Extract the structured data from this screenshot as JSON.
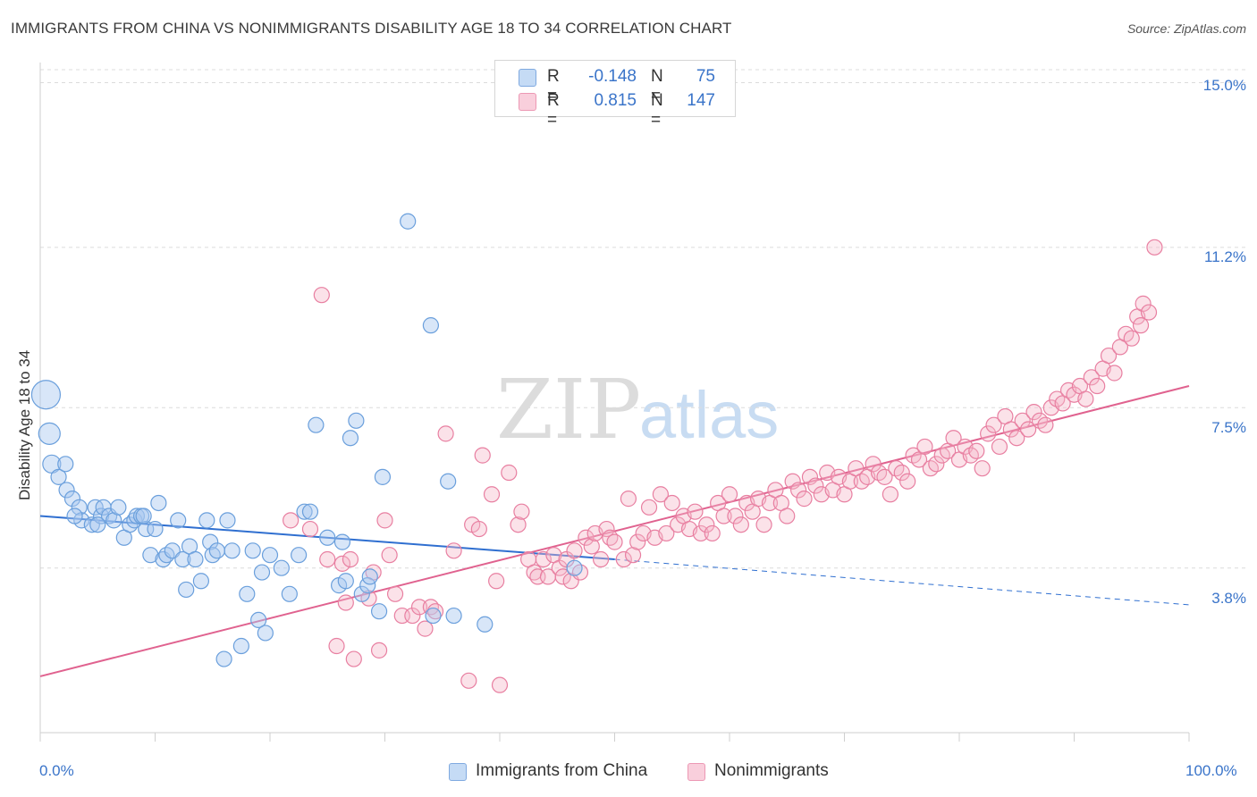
{
  "header": {
    "title": "IMMIGRANTS FROM CHINA VS NONIMMIGRANTS DISABILITY AGE 18 TO 34 CORRELATION CHART",
    "source": "Source: ZipAtlas.com"
  },
  "watermark": {
    "zip": "ZIP",
    "atlas": "atlas"
  },
  "legend": {
    "r_label": "R =",
    "n_label": "N =",
    "rows": [
      {
        "r": "-0.148",
        "n": "75",
        "color": "#a9c8f0"
      },
      {
        "r": "0.815",
        "n": "147",
        "color": "#f5b6c9"
      }
    ]
  },
  "bottom_legend": [
    {
      "label": "Immigrants from China",
      "color": "#a9c8f0"
    },
    {
      "label": "Nonimmigrants",
      "color": "#f5b6c9"
    }
  ],
  "colors": {
    "blue": "#6a9fdc",
    "blue_line": "#2f6fd0",
    "pink": "#e87fa1",
    "pink_line": "#e0628f",
    "axis_text": "#3a74c9"
  },
  "chart_data": {
    "type": "scatter",
    "title": "IMMIGRANTS FROM CHINA VS NONIMMIGRANTS DISABILITY AGE 18 TO 34 CORRELATION CHART",
    "xlabel": "",
    "ylabel": "Disability Age 18 to 34",
    "xlim": [
      0,
      100
    ],
    "ylim": [
      0,
      15.3
    ],
    "x_tick_labels": [
      "0.0%",
      "100.0%"
    ],
    "y_ticks": [
      3.8,
      7.5,
      11.2,
      15.0
    ],
    "y_tick_labels": [
      "3.8%",
      "7.5%",
      "11.2%",
      "15.0%"
    ],
    "grid": "horizontal dashed",
    "series": [
      {
        "name": "Immigrants from China",
        "color": "#6a9fdc",
        "trend": {
          "x0": 0,
          "y0": 5.0,
          "x1": 50,
          "y1": 4.0,
          "dashed_to_x": 100,
          "dashed_y": 2.95
        },
        "points": [
          [
            0.5,
            7.8
          ],
          [
            0.8,
            6.9
          ],
          [
            1.0,
            6.2
          ],
          [
            1.6,
            5.9
          ],
          [
            2.2,
            6.2
          ],
          [
            2.3,
            5.6
          ],
          [
            2.8,
            5.4
          ],
          [
            3.4,
            5.2
          ],
          [
            3.6,
            4.9
          ],
          [
            4.5,
            4.8
          ],
          [
            4.8,
            5.2
          ],
          [
            5.3,
            5.0
          ],
          [
            5.5,
            5.2
          ],
          [
            6.0,
            5.0
          ],
          [
            6.4,
            4.9
          ],
          [
            6.8,
            5.2
          ],
          [
            7.3,
            4.5
          ],
          [
            7.8,
            4.8
          ],
          [
            8.2,
            4.9
          ],
          [
            8.4,
            5.0
          ],
          [
            8.8,
            5.0
          ],
          [
            9.2,
            4.7
          ],
          [
            9.6,
            4.1
          ],
          [
            10.0,
            4.7
          ],
          [
            10.3,
            5.3
          ],
          [
            10.7,
            4.0
          ],
          [
            11.0,
            4.1
          ],
          [
            11.5,
            4.2
          ],
          [
            12.0,
            4.9
          ],
          [
            12.4,
            4.0
          ],
          [
            12.7,
            3.3
          ],
          [
            13.0,
            4.3
          ],
          [
            13.5,
            4.0
          ],
          [
            14.0,
            3.5
          ],
          [
            14.5,
            4.9
          ],
          [
            14.8,
            4.4
          ],
          [
            15.0,
            4.1
          ],
          [
            15.4,
            4.2
          ],
          [
            16.0,
            1.7
          ],
          [
            16.3,
            4.9
          ],
          [
            16.7,
            4.2
          ],
          [
            17.5,
            2.0
          ],
          [
            18.0,
            3.2
          ],
          [
            18.5,
            4.2
          ],
          [
            19.0,
            2.6
          ],
          [
            19.3,
            3.7
          ],
          [
            19.6,
            2.3
          ],
          [
            20.0,
            4.1
          ],
          [
            21.0,
            3.8
          ],
          [
            21.7,
            3.2
          ],
          [
            22.5,
            4.1
          ],
          [
            23.0,
            5.1
          ],
          [
            23.5,
            5.1
          ],
          [
            24.0,
            7.1
          ],
          [
            25.0,
            4.5
          ],
          [
            26.0,
            3.4
          ],
          [
            26.3,
            4.4
          ],
          [
            26.6,
            3.5
          ],
          [
            27.0,
            6.8
          ],
          [
            27.5,
            7.2
          ],
          [
            28.0,
            3.2
          ],
          [
            28.5,
            3.4
          ],
          [
            28.7,
            3.6
          ],
          [
            29.5,
            2.8
          ],
          [
            29.8,
            5.9
          ],
          [
            32.0,
            11.8
          ],
          [
            34.0,
            9.4
          ],
          [
            34.2,
            2.7
          ],
          [
            35.5,
            5.8
          ],
          [
            36.0,
            2.7
          ],
          [
            38.7,
            2.5
          ],
          [
            46.5,
            3.8
          ],
          [
            3.0,
            5.0
          ],
          [
            5.0,
            4.8
          ],
          [
            9.0,
            5.0
          ]
        ]
      },
      {
        "name": "Nonimmigrants",
        "color": "#e87fa1",
        "trend": {
          "x0": 0,
          "y0": 1.3,
          "x1": 100,
          "y1": 8.0
        },
        "points": [
          [
            21.8,
            4.9
          ],
          [
            23.5,
            4.7
          ],
          [
            24.5,
            10.1
          ],
          [
            25.0,
            4.0
          ],
          [
            25.8,
            2.0
          ],
          [
            26.3,
            3.9
          ],
          [
            26.6,
            3.0
          ],
          [
            27.0,
            4.0
          ],
          [
            27.3,
            1.7
          ],
          [
            28.6,
            3.1
          ],
          [
            29.0,
            3.7
          ],
          [
            29.5,
            1.9
          ],
          [
            30.0,
            4.9
          ],
          [
            30.4,
            4.1
          ],
          [
            30.9,
            3.2
          ],
          [
            31.5,
            2.7
          ],
          [
            32.4,
            2.7
          ],
          [
            33.0,
            2.9
          ],
          [
            33.5,
            2.4
          ],
          [
            34.0,
            2.9
          ],
          [
            34.4,
            2.8
          ],
          [
            35.3,
            6.9
          ],
          [
            36.0,
            4.2
          ],
          [
            37.3,
            1.2
          ],
          [
            37.6,
            4.8
          ],
          [
            38.2,
            4.7
          ],
          [
            38.5,
            6.4
          ],
          [
            39.3,
            5.5
          ],
          [
            39.7,
            3.5
          ],
          [
            40.0,
            1.1
          ],
          [
            40.8,
            6.0
          ],
          [
            41.6,
            4.8
          ],
          [
            41.9,
            5.1
          ],
          [
            42.5,
            4.0
          ],
          [
            43.0,
            3.7
          ],
          [
            43.3,
            3.6
          ],
          [
            43.8,
            4.0
          ],
          [
            44.2,
            3.6
          ],
          [
            44.7,
            4.1
          ],
          [
            45.2,
            3.8
          ],
          [
            45.5,
            3.6
          ],
          [
            45.8,
            4.0
          ],
          [
            46.2,
            3.5
          ],
          [
            46.5,
            4.2
          ],
          [
            47.0,
            3.7
          ],
          [
            47.5,
            4.5
          ],
          [
            48.0,
            4.3
          ],
          [
            48.3,
            4.6
          ],
          [
            48.8,
            4.0
          ],
          [
            49.3,
            4.7
          ],
          [
            49.6,
            4.5
          ],
          [
            50.0,
            4.4
          ],
          [
            50.8,
            4.0
          ],
          [
            51.2,
            5.4
          ],
          [
            51.6,
            4.1
          ],
          [
            52.0,
            4.4
          ],
          [
            52.5,
            4.6
          ],
          [
            53.0,
            5.2
          ],
          [
            53.5,
            4.5
          ],
          [
            54.0,
            5.5
          ],
          [
            54.5,
            4.6
          ],
          [
            55.0,
            5.3
          ],
          [
            55.5,
            4.8
          ],
          [
            56.0,
            5.0
          ],
          [
            56.5,
            4.7
          ],
          [
            57.0,
            5.1
          ],
          [
            57.5,
            4.6
          ],
          [
            58.0,
            4.8
          ],
          [
            58.5,
            4.6
          ],
          [
            59.0,
            5.3
          ],
          [
            59.5,
            5.0
          ],
          [
            60.0,
            5.5
          ],
          [
            60.5,
            5.0
          ],
          [
            61.0,
            4.8
          ],
          [
            61.5,
            5.3
          ],
          [
            62.0,
            5.1
          ],
          [
            62.5,
            5.4
          ],
          [
            63.0,
            4.8
          ],
          [
            63.5,
            5.3
          ],
          [
            64.0,
            5.6
          ],
          [
            64.5,
            5.3
          ],
          [
            65.0,
            5.0
          ],
          [
            65.5,
            5.8
          ],
          [
            66.0,
            5.6
          ],
          [
            66.5,
            5.4
          ],
          [
            67.0,
            5.9
          ],
          [
            67.5,
            5.7
          ],
          [
            68.0,
            5.5
          ],
          [
            68.5,
            6.0
          ],
          [
            69.0,
            5.6
          ],
          [
            69.5,
            5.9
          ],
          [
            70.0,
            5.5
          ],
          [
            70.5,
            5.8
          ],
          [
            71.0,
            6.1
          ],
          [
            71.5,
            5.8
          ],
          [
            72.0,
            5.9
          ],
          [
            72.5,
            6.2
          ],
          [
            73.0,
            6.0
          ],
          [
            73.5,
            5.9
          ],
          [
            74.0,
            5.5
          ],
          [
            74.5,
            6.1
          ],
          [
            75.0,
            6.0
          ],
          [
            75.5,
            5.8
          ],
          [
            76.0,
            6.4
          ],
          [
            76.5,
            6.3
          ],
          [
            77.0,
            6.6
          ],
          [
            77.5,
            6.1
          ],
          [
            78.0,
            6.2
          ],
          [
            78.5,
            6.4
          ],
          [
            79.0,
            6.5
          ],
          [
            79.5,
            6.8
          ],
          [
            80.0,
            6.3
          ],
          [
            80.5,
            6.6
          ],
          [
            81.0,
            6.4
          ],
          [
            81.5,
            6.5
          ],
          [
            82.0,
            6.1
          ],
          [
            82.5,
            6.9
          ],
          [
            83.0,
            7.1
          ],
          [
            83.5,
            6.6
          ],
          [
            84.0,
            7.3
          ],
          [
            84.5,
            7.0
          ],
          [
            85.0,
            6.8
          ],
          [
            85.5,
            7.2
          ],
          [
            86.0,
            7.0
          ],
          [
            86.5,
            7.4
          ],
          [
            87.0,
            7.2
          ],
          [
            87.5,
            7.1
          ],
          [
            88.0,
            7.5
          ],
          [
            88.5,
            7.7
          ],
          [
            89.0,
            7.6
          ],
          [
            89.5,
            7.9
          ],
          [
            90.0,
            7.8
          ],
          [
            90.5,
            8.0
          ],
          [
            91.0,
            7.7
          ],
          [
            91.5,
            8.2
          ],
          [
            92.0,
            8.0
          ],
          [
            92.5,
            8.4
          ],
          [
            93.0,
            8.7
          ],
          [
            93.5,
            8.3
          ],
          [
            94.0,
            8.9
          ],
          [
            94.5,
            9.2
          ],
          [
            95.0,
            9.1
          ],
          [
            95.5,
            9.6
          ],
          [
            96.0,
            9.9
          ],
          [
            96.5,
            9.7
          ],
          [
            97.0,
            11.2
          ],
          [
            95.8,
            9.4
          ]
        ]
      }
    ]
  }
}
